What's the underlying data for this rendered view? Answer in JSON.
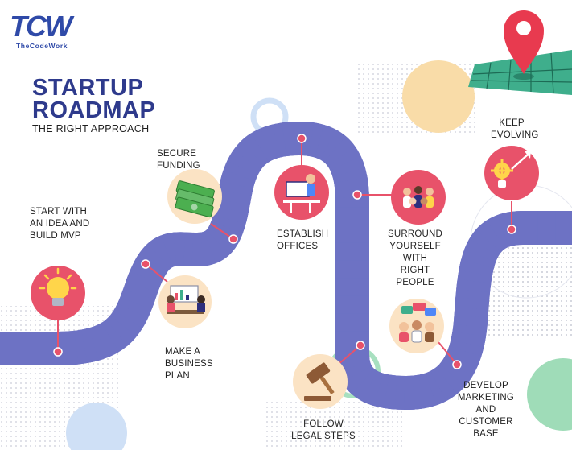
{
  "brand": {
    "logo_text": "TCW",
    "logo_subtitle": "TheCodeWork"
  },
  "heading": {
    "title_line1": "STARTUP",
    "title_line2": "ROADMAP",
    "subtitle": "THE RIGHT APPROACH"
  },
  "steps": [
    {
      "id": "idea",
      "label": "START WITH\nAN IDEA AND\nBUILD MVP",
      "icon": "lightbulb-icon"
    },
    {
      "id": "plan",
      "label": "MAKE A\nBUSINESS\nPLAN",
      "icon": "business-meeting-icon"
    },
    {
      "id": "funding",
      "label": "SECURE\nFUNDING",
      "icon": "money-stack-icon"
    },
    {
      "id": "offices",
      "label": "ESTABLISH\nOFFICES",
      "icon": "office-desk-icon"
    },
    {
      "id": "legal",
      "label": "FOLLOW\nLEGAL STEPS",
      "icon": "gavel-icon"
    },
    {
      "id": "people",
      "label": "SURROUND\nYOURSELF\nWITH\nRIGHT\nPEOPLE",
      "icon": "team-icon"
    },
    {
      "id": "marketing",
      "label": "DEVELOP\nMARKETING\nAND\nCUSTOMER\nBASE",
      "icon": "customers-chat-icon"
    },
    {
      "id": "evolve",
      "label": "KEEP\nEVOLVING",
      "icon": "gear-growth-icon"
    }
  ],
  "colors": {
    "road": "#2d2f7e",
    "road_edge": "#6d72c4",
    "marker": "#e8526a",
    "circle_fill": "#fbe3c4",
    "title": "#2e3a8c",
    "map_pin": "#e83a4f",
    "map_green": "#3fae8c"
  }
}
